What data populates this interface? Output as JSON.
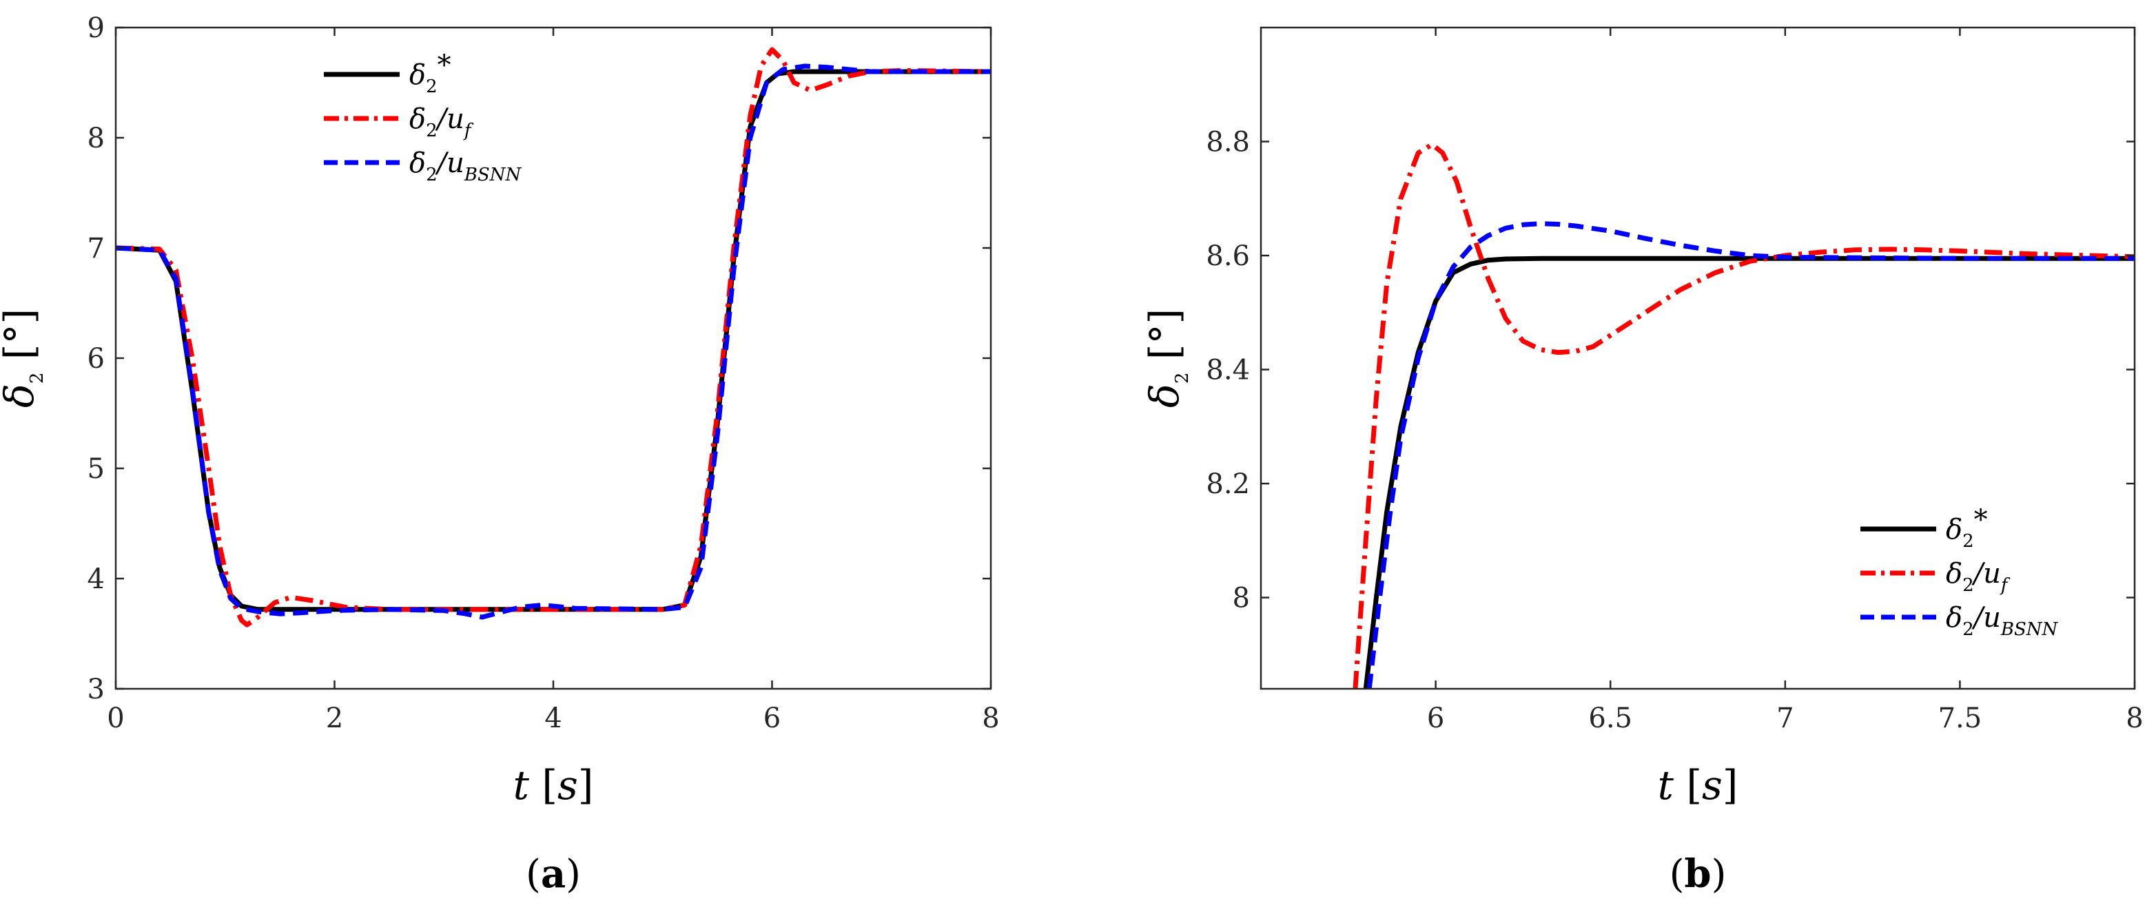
{
  "chart_data": [
    {
      "panel_label": "a",
      "type": "line",
      "xlabel": "t [s]",
      "ylabel": "δ2 [°]",
      "xlim": [
        0,
        8
      ],
      "ylim": [
        3,
        9
      ],
      "xticks": [
        0,
        2,
        4,
        6,
        8
      ],
      "yticks": [
        3,
        4,
        5,
        6,
        7,
        8,
        9
      ],
      "grid": false,
      "legend_position": "top-center",
      "series": [
        {
          "name": "δ2*",
          "legend": {
            "base": "δ",
            "sub": "2",
            "tail": "*"
          },
          "color": "#000000",
          "style": "solid",
          "x": [
            0,
            0.4,
            0.55,
            0.7,
            0.85,
            0.95,
            1.05,
            1.15,
            1.3,
            1.6,
            2,
            3,
            4,
            5,
            5.2,
            5.35,
            5.5,
            5.65,
            5.8,
            5.95,
            6.05,
            6.2,
            7,
            8
          ],
          "y": [
            7,
            6.98,
            6.7,
            5.7,
            4.6,
            4.1,
            3.85,
            3.75,
            3.72,
            3.72,
            3.72,
            3.72,
            3.72,
            3.72,
            3.76,
            4.2,
            5.4,
            6.9,
            8.1,
            8.5,
            8.58,
            8.6,
            8.6,
            8.6
          ]
        },
        {
          "name": "δ2/uf",
          "legend": {
            "base": "δ",
            "sub": "2",
            "tail": "/u",
            "sub2": "f"
          },
          "color": "#ff0000",
          "style": "dashdot",
          "x": [
            0,
            0.4,
            0.55,
            0.7,
            0.85,
            0.95,
            1.05,
            1.15,
            1.2,
            1.3,
            1.45,
            1.6,
            1.8,
            2.1,
            2.5,
            3,
            4,
            5,
            5.2,
            5.35,
            5.5,
            5.65,
            5.8,
            5.9,
            6.0,
            6.1,
            6.2,
            6.35,
            6.5,
            6.7,
            6.9,
            7.2,
            8
          ],
          "y": [
            7,
            6.99,
            6.8,
            6.0,
            5.0,
            4.3,
            3.85,
            3.62,
            3.58,
            3.65,
            3.78,
            3.83,
            3.8,
            3.74,
            3.72,
            3.72,
            3.72,
            3.72,
            3.76,
            4.3,
            5.5,
            7.0,
            8.2,
            8.65,
            8.8,
            8.7,
            8.5,
            8.43,
            8.48,
            8.56,
            8.6,
            8.61,
            8.6
          ]
        },
        {
          "name": "δ2/uBSNN",
          "legend": {
            "base": "δ",
            "sub": "2",
            "tail": "/u",
            "sub2": "BSNN"
          },
          "color": "#0000ff",
          "style": "dashed",
          "x": [
            0,
            0.4,
            0.55,
            0.7,
            0.85,
            0.95,
            1.05,
            1.15,
            1.3,
            1.5,
            1.7,
            2,
            2.5,
            3,
            3.2,
            3.35,
            3.5,
            3.7,
            3.9,
            4.2,
            5,
            5.2,
            5.35,
            5.5,
            5.65,
            5.8,
            5.95,
            6.1,
            6.3,
            6.5,
            6.7,
            6.9,
            7.2,
            8
          ],
          "y": [
            7,
            6.98,
            6.72,
            5.72,
            4.6,
            4.08,
            3.82,
            3.73,
            3.7,
            3.68,
            3.69,
            3.71,
            3.72,
            3.71,
            3.68,
            3.65,
            3.69,
            3.74,
            3.76,
            3.73,
            3.72,
            3.74,
            4.1,
            5.3,
            6.8,
            8.0,
            8.5,
            8.62,
            8.65,
            8.64,
            8.62,
            8.6,
            8.6,
            8.6
          ]
        }
      ]
    },
    {
      "panel_label": "b",
      "type": "line",
      "xlabel": "t [s]",
      "ylabel": "δ2 [°]",
      "xlim": [
        5.5,
        8
      ],
      "ylim": [
        7.84,
        9
      ],
      "xticks": [
        6,
        6.5,
        7,
        7.5,
        8
      ],
      "xtick_labels": [
        "6",
        "6.5",
        "7",
        "7.5",
        "8"
      ],
      "yticks": [
        8.0,
        8.2,
        8.4,
        8.6,
        8.8
      ],
      "ytick_labels": [
        "8",
        "8.2",
        "8.4",
        "8.6",
        "8.8"
      ],
      "grid": false,
      "legend_position": "bottom-right",
      "series": [
        {
          "name": "δ2*",
          "legend": {
            "base": "δ",
            "sub": "2",
            "tail": "*"
          },
          "color": "#000000",
          "style": "solid",
          "x": [
            5.8,
            5.83,
            5.86,
            5.9,
            5.95,
            6.0,
            6.05,
            6.1,
            6.15,
            6.2,
            6.3,
            6.5,
            7,
            7.5,
            8
          ],
          "y": [
            7.84,
            8.0,
            8.15,
            8.3,
            8.43,
            8.52,
            8.57,
            8.585,
            8.592,
            8.594,
            8.595,
            8.595,
            8.595,
            8.595,
            8.595
          ]
        },
        {
          "name": "δ2/uf",
          "legend": {
            "base": "δ",
            "sub": "2",
            "tail": "/u",
            "sub2": "f"
          },
          "color": "#ff0000",
          "style": "dashdot",
          "x": [
            5.77,
            5.8,
            5.83,
            5.86,
            5.9,
            5.95,
            5.99,
            6.02,
            6.06,
            6.1,
            6.15,
            6.2,
            6.25,
            6.3,
            6.35,
            6.4,
            6.45,
            6.5,
            6.6,
            6.7,
            6.8,
            6.9,
            7.0,
            7.1,
            7.2,
            7.3,
            7.4,
            7.5,
            7.7,
            8
          ],
          "y": [
            7.84,
            8.1,
            8.35,
            8.55,
            8.7,
            8.78,
            8.795,
            8.78,
            8.73,
            8.65,
            8.56,
            8.49,
            8.45,
            8.435,
            8.43,
            8.432,
            8.44,
            8.46,
            8.5,
            8.54,
            8.57,
            8.59,
            8.6,
            8.606,
            8.61,
            8.611,
            8.61,
            8.608,
            8.603,
            8.598
          ]
        },
        {
          "name": "δ2/uBSNN",
          "legend": {
            "base": "δ",
            "sub": "2",
            "tail": "/u",
            "sub2": "BSNN"
          },
          "color": "#0000ff",
          "style": "dashed",
          "x": [
            5.81,
            5.84,
            5.87,
            5.9,
            5.95,
            6.0,
            6.05,
            6.1,
            6.15,
            6.2,
            6.25,
            6.3,
            6.35,
            6.4,
            6.5,
            6.6,
            6.7,
            6.8,
            6.9,
            7.0,
            7.5,
            8
          ],
          "y": [
            7.84,
            8.0,
            8.15,
            8.28,
            8.42,
            8.52,
            8.58,
            8.615,
            8.635,
            8.648,
            8.654,
            8.656,
            8.655,
            8.652,
            8.643,
            8.63,
            8.618,
            8.608,
            8.6,
            8.597,
            8.595,
            8.595
          ]
        }
      ]
    }
  ]
}
